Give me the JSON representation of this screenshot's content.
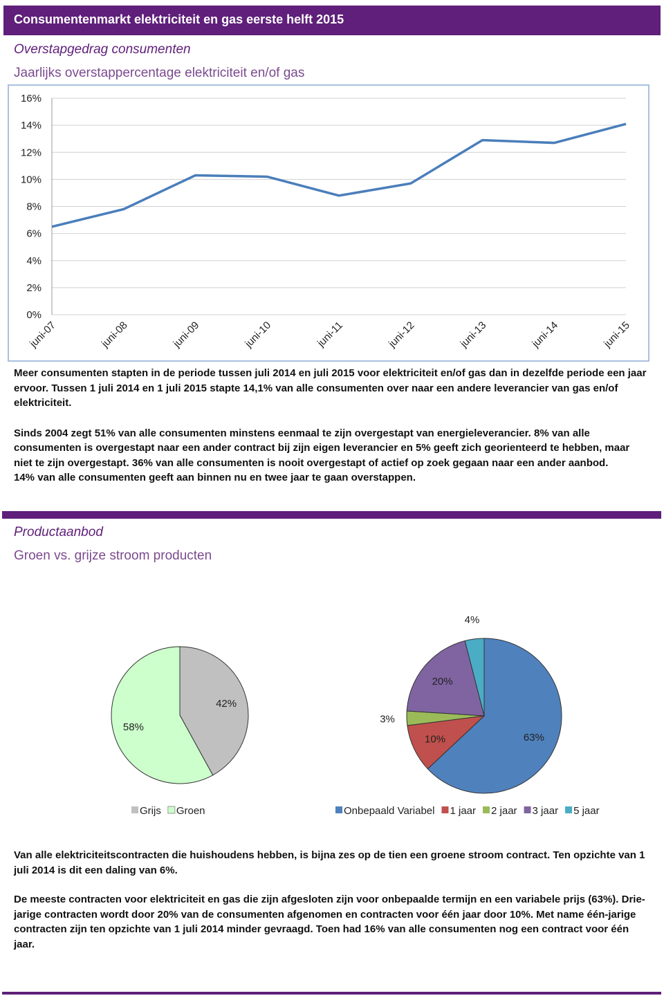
{
  "header": {
    "title": "Consumentenmarkt elektriciteit en gas eerste helft 2015"
  },
  "section1": {
    "title": "Overstapgedrag consumenten",
    "paragraphs": [
      "Meer consumenten stapten in de periode tussen juli 2014 en juli 2015 voor elektriciteit en/of gas dan in dezelfde periode een jaar ervoor. Tussen 1 juli 2014 en 1 juli 2015 stapte 14,1% van alle consumenten over naar een andere leverancier van gas en/of elektriciteit.",
      "Sinds 2004 zegt 51% van alle consumenten minstens eenmaal te zijn overgestapt van energieleverancier. 8% van alle consumenten is overgestapt naar een ander contract bij zijn eigen leverancier en 5% geeft zich georienteerd te hebben, maar niet te zijn overgestapt. 36% van alle consumenten is nooit overgestapt of actief op zoek gegaan naar een ander aanbod.",
      "14% van alle  consumenten geeft aan binnen nu en twee jaar te gaan overstappen."
    ]
  },
  "section2": {
    "title": "Productaanbod",
    "subtitle": "Groen vs. grijze stroom producten",
    "paragraphs": [
      "Van alle elektriciteitscontracten die huishoudens hebben, is bijna zes op de tien een groene stroom contract. Ten opzichte van 1 juli 2014 is dit een daling van 6%.",
      "De meeste contracten voor elektriciteit en gas die zijn afgesloten zijn voor onbepaalde termijn en een variabele prijs (63%). Drie- jarige contracten wordt door 20% van de consumenten afgenomen en contracten voor één jaar door 10%. Met name één-jarige contracten zijn ten opzichte van 1 juli 2014 minder gevraagd. Toen had 16% van alle consumenten nog een contract voor één jaar."
    ]
  },
  "chart_data": [
    {
      "type": "line",
      "title": "Jaarlijks overstappercentage elektriciteit en/of gas",
      "categories": [
        "juni-07",
        "juni-08",
        "juni-09",
        "juni-10",
        "juni-11",
        "juni-12",
        "juni-13",
        "juni-14",
        "juni-15"
      ],
      "values": [
        6.5,
        7.8,
        10.3,
        10.2,
        8.8,
        9.7,
        12.9,
        12.7,
        14.1
      ],
      "color": "#4a7ebb",
      "ylim": [
        0,
        16
      ],
      "yticks": [
        {
          "value": 0,
          "label": "0%"
        },
        {
          "value": 2,
          "label": "2%"
        },
        {
          "value": 4,
          "label": "4%"
        },
        {
          "value": 6,
          "label": "6%"
        },
        {
          "value": 8,
          "label": "8%"
        },
        {
          "value": 10,
          "label": "10%"
        },
        {
          "value": 12,
          "label": "12%"
        },
        {
          "value": 14,
          "label": "14%"
        },
        {
          "value": 16,
          "label": "16%"
        }
      ],
      "grid": true
    },
    {
      "type": "pie",
      "categories": [
        "Grijs",
        "Groen"
      ],
      "values": [
        42,
        58
      ],
      "value_labels": [
        "42%",
        "58%"
      ],
      "colors": [
        "#c0c0c0",
        "#ccffcc"
      ],
      "legend": "bottom"
    },
    {
      "type": "pie",
      "categories": [
        "Onbepaald Variabel",
        "1 jaar",
        "2 jaar",
        "3 jaar",
        "5 jaar"
      ],
      "values": [
        63,
        10,
        3,
        20,
        4
      ],
      "value_labels": [
        "63%",
        "10%",
        "3%",
        "20%",
        "4%"
      ],
      "colors": [
        "#4f81bd",
        "#c0504d",
        "#9bbb59",
        "#8064a2",
        "#4bacc6"
      ],
      "legend": "bottom"
    }
  ]
}
